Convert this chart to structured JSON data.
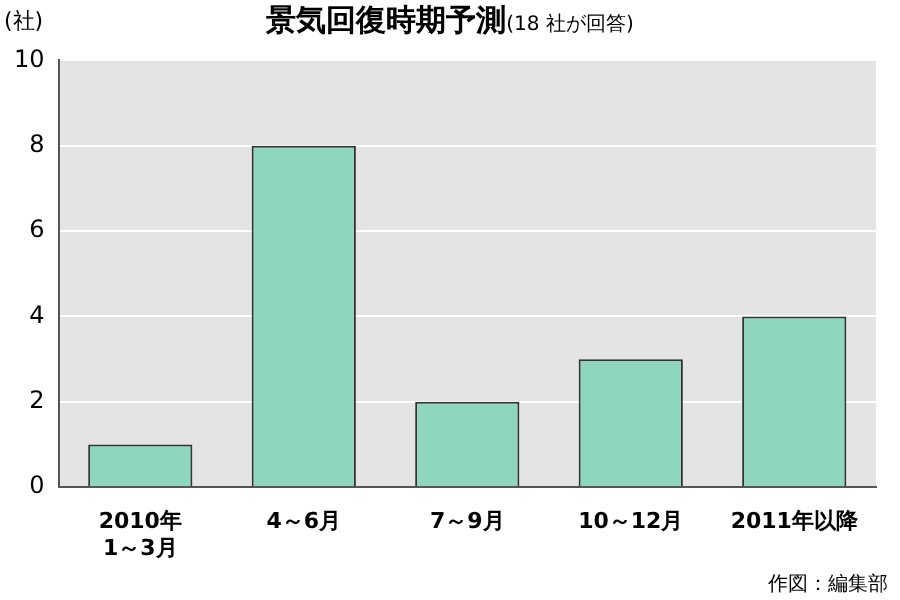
{
  "chart_data": {
    "type": "bar",
    "title": "景気回復時期予測",
    "subtitle": "(18 社が回答)",
    "ylabel": "(社)",
    "categories": [
      "2010年\n1～3月",
      "4～6月",
      "7～9月",
      "10～12月",
      "2011年以降"
    ],
    "values": [
      1,
      8,
      2,
      3,
      4
    ],
    "color": "#8fd6be",
    "ylim": [
      0,
      10
    ],
    "yticks": [
      0,
      2,
      4,
      6,
      8,
      10
    ],
    "grid": "y",
    "annotations": [
      "作図：編集部"
    ]
  }
}
